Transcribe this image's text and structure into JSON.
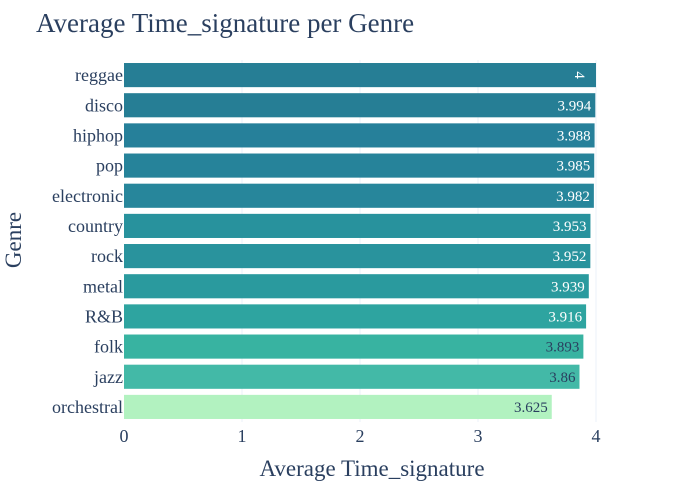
{
  "chart_data": {
    "type": "bar",
    "orientation": "horizontal",
    "title": "Average Time_signature per Genre",
    "xlabel": "Average Time_signature",
    "ylabel": "Genre",
    "xlim": [
      0,
      4
    ],
    "xticks": [
      "0",
      "1",
      "2",
      "3",
      "4"
    ],
    "grid": "vertical gridlines",
    "categories": [
      "reggae",
      "disco",
      "hiphop",
      "pop",
      "electronic",
      "country",
      "rock",
      "metal",
      "R&B",
      "folk",
      "jazz",
      "orchestral"
    ],
    "values": [
      4,
      3.994,
      3.988,
      3.985,
      3.982,
      3.953,
      3.952,
      3.939,
      3.916,
      3.893,
      3.86,
      3.625
    ],
    "value_labels": [
      "4",
      "3.994",
      "3.988",
      "3.985",
      "3.982",
      "3.953",
      "3.952",
      "3.939",
      "3.916",
      "3.893",
      "3.86",
      "3.625"
    ],
    "colors": [
      "#267e95",
      "#267e95",
      "#26809a",
      "#26839a",
      "#27869b",
      "#28929d",
      "#29939d",
      "#2a9a9e",
      "#2ea4a0",
      "#38b3a1",
      "#43b9a7",
      "#b2f2c0"
    ],
    "label_colors": [
      "#ffffff",
      "#ffffff",
      "#ffffff",
      "#ffffff",
      "#ffffff",
      "#ffffff",
      "#ffffff",
      "#ffffff",
      "#ffffff",
      "#2a3f5f",
      "#2a3f5f",
      "#2a3f5f"
    ]
  }
}
